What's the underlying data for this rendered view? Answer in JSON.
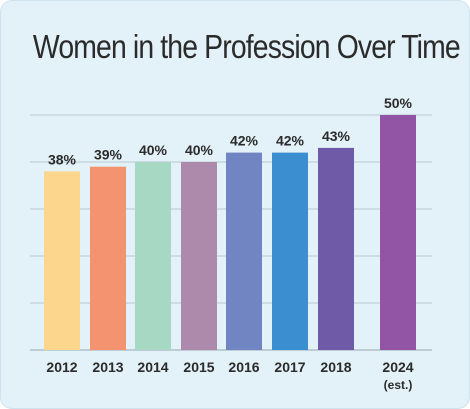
{
  "chart_data": {
    "type": "bar",
    "title": "Women in the Profession Over Time",
    "categories": [
      "2012",
      "2013",
      "2014",
      "2015",
      "2016",
      "2017",
      "2018",
      "2024"
    ],
    "category_notes": [
      "",
      "",
      "",
      "",
      "",
      "",
      "",
      "(est.)"
    ],
    "values": [
      38,
      39,
      40,
      40,
      42,
      42,
      43,
      50
    ],
    "value_labels": [
      "38%",
      "39%",
      "40%",
      "40%",
      "42%",
      "42%",
      "43%",
      "50%"
    ],
    "ylim": [
      0,
      50
    ],
    "grid": true,
    "colors": [
      "#fcd68c",
      "#f4936f",
      "#a6d8c3",
      "#ad8aab",
      "#7285c3",
      "#3b8fd0",
      "#6e5aa7",
      "#9255a6"
    ]
  }
}
